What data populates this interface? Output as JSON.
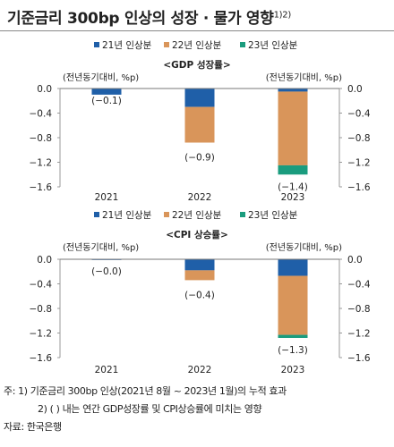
{
  "title": "기준금리 300bp 인상의 성장 · 물가 영향",
  "title_sup": "1)2)",
  "notes": {
    "note1": "주: 1) 기준금리 300bp 인상(2021년 8월 ~ 2023년 1월)의 누적 효과",
    "note2": "2) ( ) 내는 연간 GDP성장률 및 CPI상승률에 미치는 영향",
    "source": "자료: 한국은행"
  },
  "colors": {
    "s21": "#1f5fa8",
    "s22": "#d9955a",
    "s23": "#1a9c7e"
  },
  "chart_data": [
    {
      "type": "bar",
      "stacked": true,
      "title": "<GDP 성장률>",
      "ylabel_left": "(전년동기대비, %p)",
      "ylabel_right": "(전년동기대비, %p)",
      "categories": [
        "2021",
        "2022",
        "2023"
      ],
      "series": [
        {
          "name": "21년 인상분",
          "values": [
            -0.1,
            -0.3,
            -0.05
          ]
        },
        {
          "name": "22년 인상분",
          "values": [
            0,
            -0.58,
            -1.2
          ]
        },
        {
          "name": "23년 인상분",
          "values": [
            0,
            0,
            -0.15
          ]
        }
      ],
      "totals": [
        "(−0.1)",
        "(−0.9)",
        "(−1.4)"
      ],
      "ylim": [
        -1.6,
        0.0
      ],
      "yticks": [
        "0.0",
        "−0.4",
        "−0.8",
        "−1.2",
        "−1.6"
      ],
      "legend": "top"
    },
    {
      "type": "bar",
      "stacked": true,
      "title": "<CPI 상승률>",
      "ylabel_left": "(전년동기대비, %p)",
      "ylabel_right": "(전년동기대비, %p)",
      "categories": [
        "2021",
        "2022",
        "2023"
      ],
      "series": [
        {
          "name": "21년 인상분",
          "values": [
            -0.01,
            -0.18,
            -0.27
          ]
        },
        {
          "name": "22년 인상분",
          "values": [
            0,
            -0.16,
            -0.96
          ]
        },
        {
          "name": "23년 인상분",
          "values": [
            0,
            0,
            -0.05
          ]
        }
      ],
      "totals": [
        "(−0.0)",
        "(−0.4)",
        "(−1.3)"
      ],
      "ylim": [
        -1.6,
        0.0
      ],
      "yticks": [
        "0.0",
        "−0.4",
        "−0.8",
        "−1.2",
        "−1.6"
      ],
      "legend": "top"
    }
  ]
}
